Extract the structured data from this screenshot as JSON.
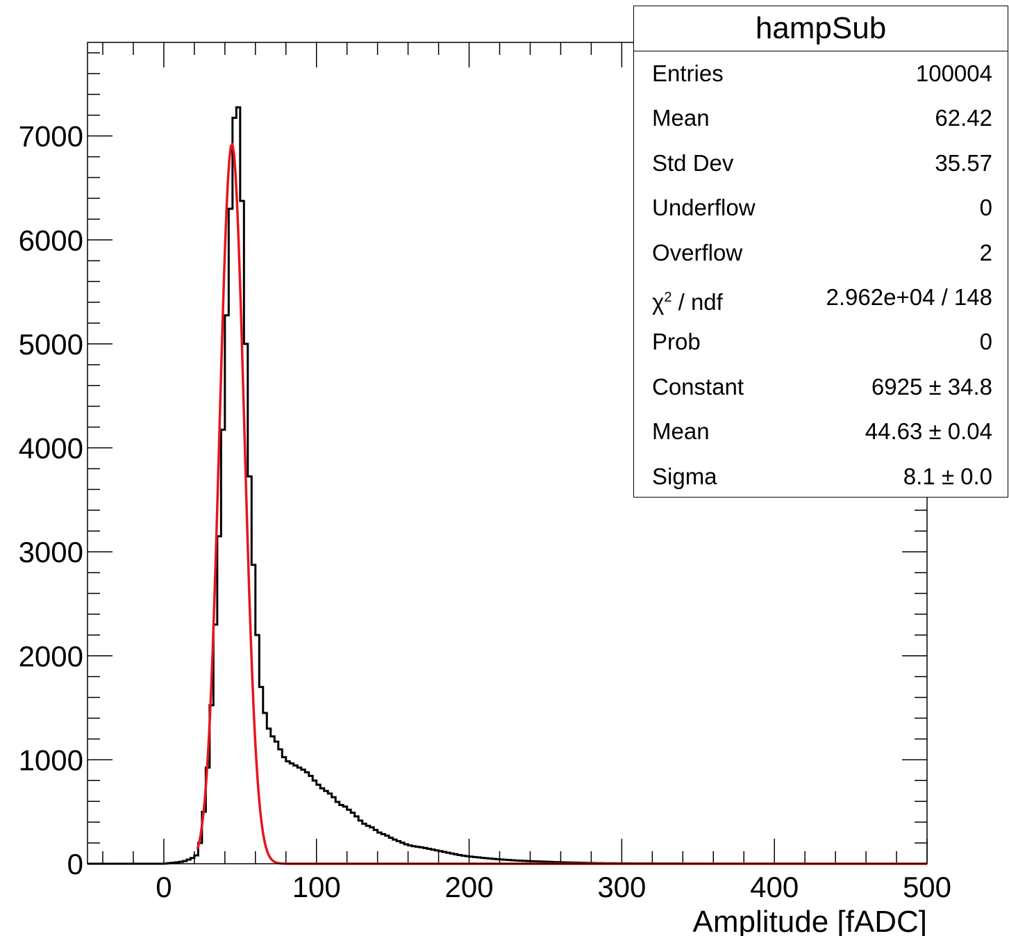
{
  "chart_data": {
    "type": "histogram",
    "xlabel": "Amplitude [fADC]",
    "xlim": [
      -50,
      500
    ],
    "ylim": [
      0,
      7900
    ],
    "x_ticks": [
      0,
      100,
      200,
      300,
      400,
      500
    ],
    "y_ticks": [
      0,
      1000,
      2000,
      3000,
      4000,
      5000,
      6000,
      7000
    ],
    "bin_width": 2.5,
    "histogram": [
      [
        0,
        0
      ],
      [
        10,
        15
      ],
      [
        15,
        30
      ],
      [
        17.5,
        50
      ],
      [
        20,
        60
      ],
      [
        22.5,
        100
      ],
      [
        25,
        300
      ],
      [
        27.5,
        700
      ],
      [
        30,
        1150
      ],
      [
        32.5,
        1900
      ],
      [
        35,
        2700
      ],
      [
        37.5,
        3600
      ],
      [
        40,
        4750
      ],
      [
        42.5,
        5800
      ],
      [
        45,
        6800
      ],
      [
        47.5,
        7550
      ],
      [
        50,
        7000
      ],
      [
        52.5,
        5750
      ],
      [
        55,
        4250
      ],
      [
        57.5,
        3200
      ],
      [
        60,
        2550
      ],
      [
        62.5,
        1850
      ],
      [
        65,
        1550
      ],
      [
        67.5,
        1350
      ],
      [
        70,
        1250
      ],
      [
        72.5,
        1200
      ],
      [
        75,
        1150
      ],
      [
        77.5,
        1050
      ],
      [
        80,
        1000
      ],
      [
        82.5,
        970
      ],
      [
        85,
        960
      ],
      [
        87.5,
        930
      ],
      [
        90,
        920
      ],
      [
        92.5,
        890
      ],
      [
        95,
        870
      ],
      [
        97.5,
        820
      ],
      [
        100,
        780
      ],
      [
        102.5,
        740
      ],
      [
        105,
        710
      ],
      [
        107.5,
        690
      ],
      [
        110,
        660
      ],
      [
        112.5,
        620
      ],
      [
        115,
        570
      ],
      [
        117.5,
        560
      ],
      [
        120,
        540
      ],
      [
        122.5,
        500
      ],
      [
        125,
        480
      ],
      [
        127.5,
        430
      ],
      [
        130,
        400
      ],
      [
        132.5,
        370
      ],
      [
        135,
        360
      ],
      [
        137.5,
        340
      ],
      [
        140,
        310
      ],
      [
        142.5,
        290
      ],
      [
        145,
        280
      ],
      [
        147.5,
        260
      ],
      [
        150,
        240
      ],
      [
        155,
        210
      ],
      [
        160,
        180
      ],
      [
        165,
        165
      ],
      [
        170,
        155
      ],
      [
        175,
        140
      ],
      [
        180,
        125
      ],
      [
        185,
        110
      ],
      [
        190,
        95
      ],
      [
        195,
        80
      ],
      [
        200,
        70
      ],
      [
        210,
        55
      ],
      [
        220,
        42
      ],
      [
        230,
        32
      ],
      [
        240,
        25
      ],
      [
        250,
        20
      ],
      [
        260,
        14
      ],
      [
        270,
        10
      ],
      [
        280,
        7
      ],
      [
        290,
        5
      ],
      [
        300,
        4
      ],
      [
        320,
        3
      ],
      [
        340,
        2
      ],
      [
        360,
        1
      ],
      [
        400,
        0.5
      ],
      [
        450,
        0.3
      ],
      [
        500,
        0
      ]
    ],
    "fit_function": "gaus",
    "fit_params": {
      "constant": 6925,
      "mean": 44.63,
      "sigma": 8.1
    },
    "fit_range": [
      22,
      80
    ],
    "colors": {
      "histogram": "#000000",
      "fit": "#e8141c",
      "background": "#ffffff"
    },
    "grid": false,
    "legend_placement": "top-right"
  },
  "stats": {
    "title": "hampSub",
    "rows": [
      {
        "label": "Entries",
        "value": "100004"
      },
      {
        "label": "Mean",
        "value": "62.42"
      },
      {
        "label": "Std Dev",
        "value": "35.57"
      },
      {
        "label": "Underflow",
        "value": "0"
      },
      {
        "label": "Overflow",
        "value": "2"
      },
      {
        "label": "χ",
        "sup": "2",
        "label_tail": " / ndf",
        "value": "2.962e+04 / 148"
      },
      {
        "label": "Prob",
        "value": "0"
      },
      {
        "label": "Constant",
        "value": "6925 ± 34.8"
      },
      {
        "label": "Mean",
        "value": "44.63 ± 0.04"
      },
      {
        "label": "Sigma",
        "value": "8.1 ± 0.0"
      }
    ]
  }
}
